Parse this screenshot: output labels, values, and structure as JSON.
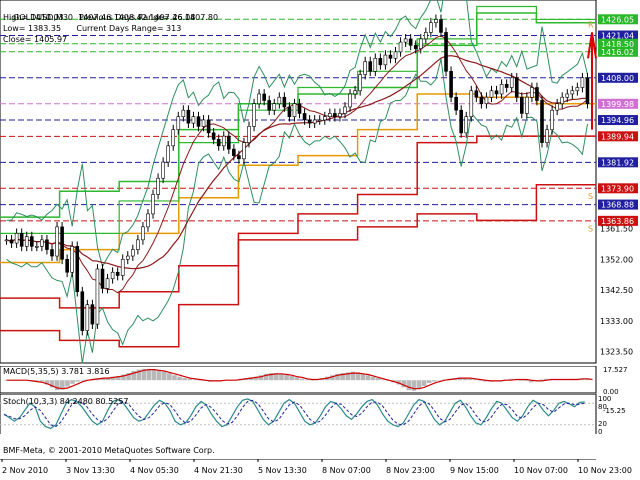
{
  "chart_data": [
    {
      "type": "candlestick",
      "title": "GOLDUSD,M30",
      "ohlc_header": "1407.46 1408.42 1407.46 1407.80",
      "info_lines": [
        "High= 1410.03",
        "Previous Days Range= 26.08",
        "Low= 1383.35",
        "Current Days Range= 313",
        "Close= 1405.97"
      ],
      "ylim": [
        1320,
        1432
      ],
      "y_ticks": [
        1426.05,
        1418.5,
        1408.0,
        1394.96,
        1381.92,
        1361.5,
        1352.0,
        1342.5,
        1333.0,
        1323.5
      ],
      "x_ticks": [
        "2 Nov 2010",
        "3 Nov 13:30",
        "4 Nov 05:30",
        "4 Nov 21:30",
        "5 Nov 13:30",
        "8 Nov 07:00",
        "8 Nov 23:00",
        "9 Nov 15:00",
        "10 Nov 07:00",
        "10 Nov 23:00"
      ],
      "close_path": [
        1358,
        1357,
        1360,
        1356,
        1359,
        1356,
        1356,
        1358,
        1355,
        1353,
        1362,
        1352,
        1348,
        1356,
        1342,
        1330,
        1338,
        1332,
        1349,
        1343,
        1346,
        1348,
        1347,
        1352,
        1353,
        1355,
        1358,
        1362,
        1366,
        1372,
        1377,
        1382,
        1387,
        1392,
        1396,
        1398,
        1394,
        1396,
        1393,
        1395,
        1391,
        1389,
        1387,
        1390,
        1386,
        1384,
        1383,
        1388,
        1393,
        1400,
        1403,
        1401,
        1398,
        1400,
        1402,
        1399,
        1396,
        1400,
        1397,
        1395,
        1394,
        1395,
        1395,
        1396,
        1397,
        1396,
        1397,
        1399,
        1403,
        1404,
        1409,
        1413,
        1410,
        1414,
        1412,
        1415,
        1414,
        1416,
        1419,
        1420,
        1418,
        1417,
        1420,
        1422,
        1425,
        1426,
        1422,
        1410,
        1402,
        1398,
        1391,
        1396,
        1404,
        1402,
        1400,
        1402,
        1404,
        1403,
        1406,
        1405,
        1408,
        1402,
        1397,
        1402,
        1405,
        1401,
        1388,
        1392,
        1398,
        1400,
        1402,
        1403,
        1404,
        1405,
        1408,
        1400
      ],
      "line_labels": [
        {
          "label": "1426.05",
          "value": 1426.05,
          "color": "#29b829"
        },
        {
          "label": "1421.04",
          "value": 1421.04,
          "color": "#1f1fa0"
        },
        {
          "label": "1418.50",
          "value": 1418.5,
          "color": "#29b829"
        },
        {
          "label": "1416.02",
          "value": 1416.02,
          "color": "#29b829"
        },
        {
          "label": "1408.00",
          "value": 1408.0,
          "color": "#1f1fa0"
        },
        {
          "label": "1399.98",
          "value": 1399.98,
          "color": "#d070d0"
        },
        {
          "label": "1394.96",
          "value": 1394.96,
          "color": "#1f1fa0"
        },
        {
          "label": "1389.94",
          "value": 1389.94,
          "color": "#cc1010"
        },
        {
          "label": "1381.92",
          "value": 1381.92,
          "color": "#1f1fa0"
        },
        {
          "label": "1373.90",
          "value": 1373.9,
          "color": "#cc1010"
        },
        {
          "label": "1368.88",
          "value": 1368.88,
          "color": "#1f1fa0"
        },
        {
          "label": "1363.86",
          "value": 1363.86,
          "color": "#cc1010"
        }
      ],
      "letter_marks": [
        {
          "text": "R",
          "value": 1424.5,
          "color": "#d49a2a"
        },
        {
          "text": "S",
          "value": 1371.5,
          "color": "#d49a2a"
        },
        {
          "text": "S",
          "value": 1361.5,
          "color": "#d49a2a"
        }
      ],
      "colors": {
        "bull": "#ffffff",
        "bear": "#000000",
        "wick": "#000000",
        "bands": "#2f8f5f",
        "ma": "#8b1a1a",
        "pivot": "#e69a00",
        "resistance": "#2db82d",
        "support": "#cc1010",
        "arrow": "#dd0000"
      }
    },
    {
      "type": "macd",
      "title": "MACD(5,35,5) 3.781 3.816",
      "ylim": [
        -18,
        20
      ],
      "y_ticks": [
        "17.527",
        "0.00",
        "-15.25"
      ],
      "histogram": [
        0,
        0,
        0,
        0,
        0,
        0,
        -1,
        -2,
        -6,
        -10,
        -14,
        -13,
        -9,
        -5,
        -2,
        0,
        1,
        2,
        3,
        3,
        4,
        5,
        6,
        8,
        10,
        13,
        15,
        16,
        16,
        15,
        14,
        12,
        10,
        7,
        5,
        3,
        2,
        1,
        0,
        -1,
        -2,
        -1,
        0,
        0,
        0,
        1,
        2,
        3,
        4,
        5,
        7,
        9,
        10,
        10,
        9,
        7,
        6,
        4,
        2,
        1,
        0,
        1,
        3,
        5,
        7,
        9,
        10,
        11,
        12,
        11,
        9,
        7,
        5,
        3,
        1,
        -1,
        -3,
        -6,
        -10,
        -14,
        -15,
        -12,
        -8,
        -4,
        -2,
        0,
        1,
        2,
        3,
        4,
        3,
        2,
        1,
        -1,
        -2,
        -2,
        -1,
        0,
        1,
        2,
        1,
        0,
        -1,
        -3,
        -1,
        1,
        2,
        2,
        1,
        1,
        1,
        2,
        2,
        2,
        1
      ],
      "signal": [
        0,
        0,
        0,
        0,
        0,
        -1,
        -2,
        -3,
        -5,
        -8,
        -11,
        -12,
        -11,
        -8,
        -5,
        -2,
        0,
        1,
        2,
        3,
        3,
        4,
        5,
        6,
        8,
        10,
        12,
        14,
        15,
        15,
        14,
        13,
        11,
        9,
        7,
        5,
        3,
        2,
        1,
        0,
        -1,
        -1,
        -1,
        0,
        0,
        0,
        1,
        2,
        3,
        4,
        5,
        7,
        8,
        9,
        9,
        8,
        7,
        5,
        4,
        2,
        1,
        1,
        2,
        3,
        5,
        7,
        8,
        9,
        10,
        10,
        9,
        8,
        6,
        4,
        2,
        0,
        -2,
        -4,
        -7,
        -10,
        -12,
        -12,
        -10,
        -7,
        -4,
        -2,
        0,
        1,
        2,
        3,
        3,
        3,
        2,
        1,
        0,
        -1,
        -1,
        -1,
        0,
        0,
        1,
        1,
        1,
        0,
        -1,
        -1,
        0,
        1,
        1,
        1,
        1,
        1,
        1,
        2,
        2,
        1
      ]
    },
    {
      "type": "stochastic",
      "title": "Stoch(10,3,3) 84.2480 80.5257",
      "ylim": [
        0,
        100
      ],
      "y_ticks": [
        "100",
        "80",
        "20",
        "0"
      ],
      "main": [
        50,
        40,
        30,
        40,
        60,
        80,
        70,
        30,
        15,
        10,
        20,
        50,
        80,
        90,
        85,
        70,
        50,
        30,
        20,
        30,
        60,
        85,
        90,
        80,
        60,
        40,
        30,
        35,
        55,
        75,
        88,
        80,
        60,
        30,
        20,
        25,
        45,
        70,
        85,
        75,
        50,
        30,
        15,
        20,
        45,
        70,
        88,
        92,
        85,
        60,
        35,
        20,
        30,
        55,
        80,
        90,
        80,
        55,
        30,
        20,
        25,
        45,
        70,
        85,
        80,
        65,
        45,
        35,
        50,
        70,
        85,
        90,
        75,
        50,
        30,
        20,
        15,
        25,
        50,
        75,
        90,
        85,
        60,
        35,
        20,
        30,
        55,
        80,
        88,
        70,
        45,
        25,
        20,
        40,
        65,
        85,
        80,
        60,
        40,
        30,
        45,
        70,
        88,
        80,
        60,
        45,
        60,
        80,
        85,
        78,
        70,
        82,
        84
      ],
      "signal": [
        48,
        44,
        37,
        37,
        45,
        60,
        70,
        60,
        40,
        20,
        15,
        28,
        50,
        75,
        85,
        82,
        70,
        50,
        35,
        27,
        37,
        58,
        78,
        85,
        78,
        60,
        44,
        35,
        40,
        55,
        73,
        82,
        76,
        58,
        37,
        25,
        30,
        47,
        67,
        76,
        68,
        52,
        33,
        22,
        27,
        45,
        68,
        85,
        88,
        78,
        58,
        37,
        28,
        35,
        55,
        75,
        83,
        75,
        55,
        35,
        25,
        30,
        47,
        67,
        80,
        77,
        63,
        48,
        43,
        52,
        70,
        83,
        83,
        72,
        52,
        33,
        22,
        20,
        30,
        50,
        72,
        84,
        78,
        60,
        38,
        28,
        35,
        55,
        74,
        80,
        68,
        47,
        30,
        28,
        42,
        63,
        77,
        76,
        62,
        43,
        38,
        50,
        68,
        80,
        76,
        62,
        55,
        67,
        78,
        80,
        76,
        77,
        80
      ]
    }
  ],
  "copyright": "BMF-Meta, © 2001-2010 MetaQuotes Software Corp."
}
